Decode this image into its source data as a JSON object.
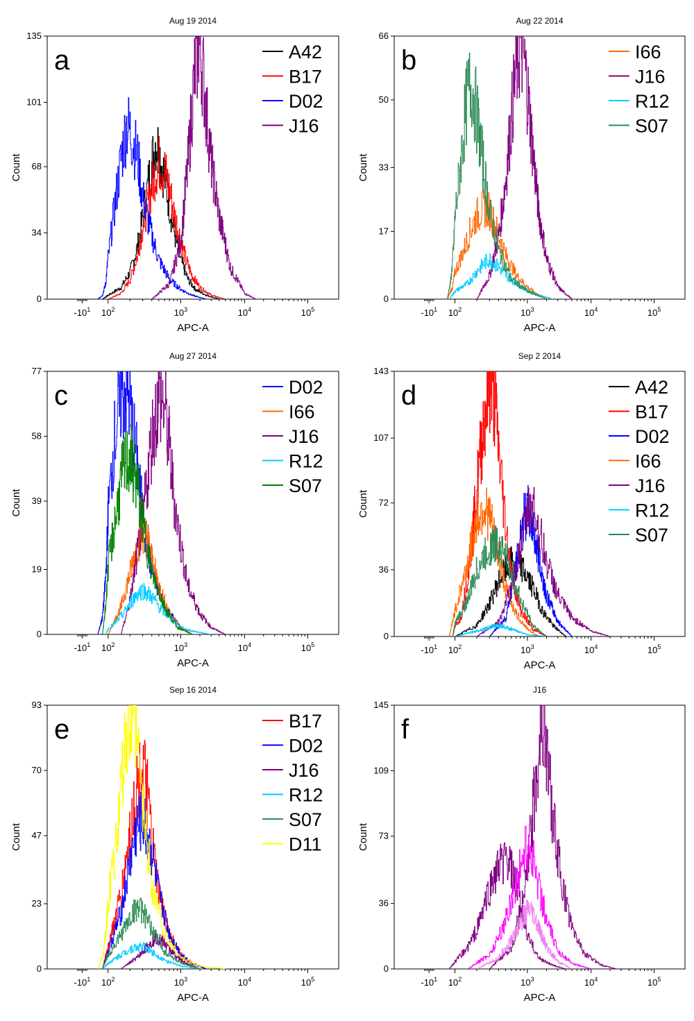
{
  "chart_data": [
    {
      "type": "area",
      "panel": "a",
      "title": "Aug 19 2014",
      "xlabel": "APC-A",
      "ylabel": "Count",
      "x_scale": "log",
      "x_tick_labels": [
        "-10^1",
        "10^2",
        "10^3",
        "10^4",
        "10^5"
      ],
      "y_ticks": [
        0,
        34,
        68,
        101,
        135
      ],
      "ylim": [
        0,
        135
      ],
      "grid": false,
      "legend_position": "top-right",
      "series": [
        {
          "name": "A42",
          "color": "#000000",
          "x": [
            60,
            100,
            150,
            200,
            250,
            300,
            350,
            400,
            450,
            500,
            600,
            700,
            800,
            1000,
            1300,
            1700,
            2500,
            4000
          ],
          "values": [
            0,
            2,
            6,
            14,
            26,
            42,
            58,
            70,
            82,
            76,
            62,
            48,
            35,
            20,
            10,
            5,
            2,
            0
          ]
        },
        {
          "name": "B17",
          "color": "#ff0000",
          "x": [
            100,
            150,
            200,
            250,
            300,
            400,
            450,
            500,
            600,
            700,
            800,
            1000,
            1200,
            1500,
            2000,
            3000,
            5000
          ],
          "values": [
            0,
            3,
            10,
            22,
            38,
            58,
            66,
            70,
            66,
            56,
            44,
            30,
            20,
            12,
            6,
            2,
            0
          ]
        },
        {
          "name": "D02",
          "color": "#0000ff",
          "x": [
            40,
            60,
            80,
            100,
            120,
            150,
            180,
            200,
            250,
            300,
            400,
            500,
            700,
            1000,
            1500,
            2500
          ],
          "values": [
            0,
            2,
            8,
            22,
            45,
            72,
            90,
            86,
            74,
            52,
            32,
            20,
            10,
            5,
            2,
            0
          ]
        },
        {
          "name": "J16",
          "color": "#800080",
          "x": [
            400,
            700,
            1000,
            1300,
            1600,
            1900,
            2200,
            2500,
            3000,
            4000,
            6000,
            10000,
            15000
          ],
          "values": [
            0,
            8,
            30,
            70,
            112,
            132,
            118,
            96,
            70,
            42,
            16,
            3,
            0
          ]
        }
      ]
    },
    {
      "type": "area",
      "panel": "b",
      "title": "Aug 22 2014",
      "xlabel": "APC-A",
      "ylabel": "Count",
      "x_scale": "log",
      "x_tick_labels": [
        "-10^1",
        "10^2",
        "10^3",
        "10^4",
        "10^5"
      ],
      "y_ticks": [
        0,
        17,
        33,
        50,
        66
      ],
      "ylim": [
        0,
        66
      ],
      "grid": false,
      "legend_position": "top-right",
      "series": [
        {
          "name": "I66",
          "color": "#ff6600",
          "x": [
            50,
            80,
            100,
            130,
            160,
            200,
            250,
            300,
            400,
            500,
            700,
            1000,
            1500,
            2500
          ],
          "values": [
            0,
            3,
            7,
            12,
            17,
            21,
            23,
            22,
            16,
            11,
            6,
            3,
            1,
            0
          ]
        },
        {
          "name": "J16",
          "color": "#800080",
          "x": [
            200,
            300,
            400,
            500,
            600,
            700,
            800,
            900,
            1000,
            1200,
            1500,
            2000,
            3000,
            5000
          ],
          "values": [
            0,
            6,
            16,
            30,
            46,
            58,
            64,
            60,
            52,
            38,
            22,
            10,
            3,
            0
          ]
        },
        {
          "name": "R12",
          "color": "#00ccff",
          "x": [
            60,
            100,
            150,
            200,
            250,
            300,
            400,
            500,
            700,
            1000,
            1500,
            2500
          ],
          "values": [
            0,
            2,
            4,
            7,
            9,
            10,
            8,
            6,
            4,
            2,
            1,
            0
          ]
        },
        {
          "name": "S07",
          "color": "#2e8b57",
          "x": [
            50,
            70,
            90,
            110,
            130,
            150,
            170,
            200,
            250,
            300,
            400,
            600,
            1000,
            2000
          ],
          "values": [
            0,
            5,
            14,
            28,
            42,
            52,
            54,
            46,
            32,
            22,
            12,
            5,
            2,
            0
          ]
        }
      ]
    },
    {
      "type": "area",
      "panel": "c",
      "title": "Aug 27 2014",
      "xlabel": "APC-A",
      "ylabel": "Count",
      "x_scale": "log",
      "x_tick_labels": [
        "-10^1",
        "10^2",
        "10^3",
        "10^4",
        "10^5"
      ],
      "y_ticks": [
        0,
        19,
        39,
        58,
        77
      ],
      "ylim": [
        0,
        77
      ],
      "grid": false,
      "legend_position": "top-right",
      "series": [
        {
          "name": "D02",
          "color": "#0000ff",
          "x": [
            40,
            60,
            80,
            100,
            120,
            150,
            180,
            200,
            250,
            300,
            400,
            600,
            1000,
            1500
          ],
          "values": [
            0,
            5,
            16,
            36,
            56,
            70,
            72,
            66,
            50,
            34,
            18,
            8,
            2,
            0
          ]
        },
        {
          "name": "I66",
          "color": "#ff6600",
          "x": [
            100,
            150,
            200,
            250,
            300,
            350,
            400,
            500,
            700,
            1000,
            1500
          ],
          "values": [
            0,
            8,
            18,
            26,
            30,
            28,
            22,
            14,
            6,
            2,
            0
          ]
        },
        {
          "name": "J16",
          "color": "#800080",
          "x": [
            150,
            200,
            300,
            400,
            500,
            600,
            700,
            800,
            1000,
            1300,
            2000,
            3000,
            5000
          ],
          "values": [
            0,
            10,
            34,
            58,
            70,
            66,
            54,
            40,
            26,
            14,
            6,
            2,
            0
          ]
        },
        {
          "name": "R12",
          "color": "#00ccff",
          "x": [
            80,
            120,
            160,
            200,
            250,
            300,
            400,
            500,
            700,
            1000,
            1500,
            3000
          ],
          "values": [
            0,
            3,
            6,
            9,
            12,
            13,
            11,
            8,
            5,
            2,
            1,
            0
          ]
        },
        {
          "name": "S07",
          "color": "#008000",
          "x": [
            60,
            80,
            100,
            130,
            160,
            200,
            250,
            300,
            400,
            600,
            900,
            1500
          ],
          "values": [
            0,
            8,
            20,
            36,
            48,
            52,
            44,
            32,
            18,
            8,
            2,
            0
          ]
        }
      ]
    },
    {
      "type": "area",
      "panel": "d",
      "title": "Sep 2 2014",
      "xlabel": "APC-A",
      "ylabel": "Count",
      "x_scale": "log",
      "x_tick_labels": [
        "-10^1",
        "10^2",
        "10^3",
        "10^4",
        "10^5"
      ],
      "y_ticks": [
        0,
        36,
        72,
        107,
        143
      ],
      "ylim": [
        0,
        143
      ],
      "grid": false,
      "legend_position": "top-right",
      "series": [
        {
          "name": "A42",
          "color": "#000000",
          "x": [
            100,
            200,
            300,
            400,
            500,
            600,
            800,
            1000,
            1300,
            1700,
            2500,
            4000
          ],
          "values": [
            0,
            6,
            18,
            30,
            36,
            40,
            38,
            32,
            24,
            14,
            6,
            0
          ]
        },
        {
          "name": "B17",
          "color": "#ff0000",
          "x": [
            80,
            120,
            160,
            200,
            250,
            300,
            350,
            400,
            500,
            600,
            800,
            1200,
            2000
          ],
          "values": [
            0,
            10,
            40,
            80,
            118,
            136,
            128,
            100,
            60,
            34,
            14,
            4,
            0
          ]
        },
        {
          "name": "D02",
          "color": "#0000ff",
          "x": [
            300,
            500,
            700,
            800,
            900,
            1000,
            1200,
            1500,
            2000,
            3000,
            5000
          ],
          "values": [
            0,
            10,
            38,
            54,
            64,
            68,
            60,
            42,
            22,
            8,
            0
          ]
        },
        {
          "name": "I66",
          "color": "#ff6600",
          "x": [
            60,
            100,
            150,
            200,
            250,
            300,
            400,
            500,
            700,
            1000,
            1500
          ],
          "values": [
            0,
            14,
            40,
            64,
            70,
            64,
            44,
            26,
            12,
            4,
            0
          ]
        },
        {
          "name": "J16",
          "color": "#800080",
          "x": [
            200,
            400,
            600,
            800,
            1000,
            1200,
            1500,
            2000,
            3000,
            5000,
            10000,
            20000
          ],
          "values": [
            0,
            8,
            26,
            48,
            66,
            72,
            58,
            40,
            22,
            10,
            3,
            0
          ]
        },
        {
          "name": "R12",
          "color": "#00ccff",
          "x": [
            100,
            200,
            300,
            400,
            500,
            700,
            1000,
            2000
          ],
          "values": [
            0,
            3,
            5,
            6,
            5,
            3,
            1,
            0
          ]
        },
        {
          "name": "S07",
          "color": "#2e8b57",
          "x": [
            80,
            150,
            200,
            300,
            400,
            500,
            600,
            800,
            1200,
            2000
          ],
          "values": [
            0,
            20,
            36,
            48,
            50,
            44,
            34,
            20,
            6,
            0
          ]
        }
      ]
    },
    {
      "type": "area",
      "panel": "e",
      "title": "Sep 16 2014",
      "xlabel": "APC-A",
      "ylabel": "Count",
      "x_scale": "log",
      "x_tick_labels": [
        "-10^1",
        "10^2",
        "10^3",
        "10^4",
        "10^5"
      ],
      "y_ticks": [
        0,
        23,
        47,
        70,
        93
      ],
      "ylim": [
        0,
        93
      ],
      "grid": false,
      "legend_position": "top-right",
      "series": [
        {
          "name": "B17",
          "color": "#ff0000",
          "x": [
            60,
            100,
            150,
            200,
            250,
            300,
            350,
            400,
            500,
            700,
            1000,
            1500,
            2500
          ],
          "values": [
            0,
            8,
            26,
            48,
            64,
            70,
            60,
            44,
            26,
            12,
            5,
            2,
            0
          ]
        },
        {
          "name": "D02",
          "color": "#0000ff",
          "x": [
            60,
            100,
            150,
            200,
            250,
            300,
            400,
            500,
            700,
            1000,
            1500,
            2500
          ],
          "values": [
            0,
            6,
            20,
            38,
            50,
            52,
            40,
            26,
            12,
            5,
            2,
            0
          ]
        },
        {
          "name": "J16",
          "color": "#800080",
          "x": [
            150,
            250,
            350,
            450,
            550,
            700,
            900,
            1200,
            2000
          ],
          "values": [
            0,
            4,
            8,
            11,
            10,
            7,
            4,
            2,
            0
          ]
        },
        {
          "name": "R12",
          "color": "#00ccff",
          "x": [
            60,
            100,
            150,
            200,
            300,
            400,
            600,
            1000,
            2000
          ],
          "values": [
            0,
            2,
            5,
            7,
            8,
            6,
            3,
            1,
            0
          ]
        },
        {
          "name": "S07",
          "color": "#2e8b57",
          "x": [
            60,
            100,
            150,
            200,
            250,
            300,
            400,
            600,
            1000,
            2000
          ],
          "values": [
            0,
            5,
            12,
            18,
            22,
            20,
            14,
            6,
            2,
            0
          ]
        },
        {
          "name": "D11",
          "color": "#ffff00",
          "x": [
            40,
            60,
            80,
            100,
            130,
            160,
            190,
            220,
            250,
            300,
            400,
            600,
            1000,
            2000,
            5000
          ],
          "values": [
            0,
            4,
            12,
            24,
            46,
            70,
            86,
            88,
            78,
            58,
            30,
            12,
            4,
            1,
            0
          ]
        }
      ]
    },
    {
      "type": "area",
      "panel": "f",
      "title": "J16",
      "xlabel": "APC-A",
      "ylabel": "Count",
      "x_scale": "log",
      "x_tick_labels": [
        "-10^1",
        "10^2",
        "10^3",
        "10^4",
        "10^5"
      ],
      "y_ticks": [
        0,
        36,
        73,
        109,
        145
      ],
      "ylim": [
        0,
        145
      ],
      "grid": false,
      "series": [
        {
          "color": "#800080",
          "x": [
            60,
            100,
            150,
            200,
            250,
            300,
            400,
            500,
            600,
            800,
            1000,
            1500,
            2500,
            4000
          ],
          "values": [
            0,
            4,
            12,
            22,
            34,
            44,
            56,
            60,
            54,
            34,
            18,
            6,
            2,
            0
          ]
        },
        {
          "color": "#800080",
          "x": [
            300,
            600,
            900,
            1200,
            1500,
            1700,
            1900,
            2200,
            2600,
            3500,
            5000,
            8000,
            15000,
            25000
          ],
          "values": [
            0,
            12,
            40,
            84,
            124,
            140,
            130,
            104,
            78,
            46,
            22,
            8,
            2,
            0
          ]
        },
        {
          "color": "#ff00ff",
          "x": [
            150,
            300,
            450,
            600,
            750,
            900,
            1000,
            1200,
            1500,
            2000,
            3000,
            5000,
            10000
          ],
          "values": [
            0,
            8,
            22,
            38,
            52,
            64,
            68,
            62,
            46,
            26,
            10,
            3,
            0
          ]
        },
        {
          "color": "#ee82ee",
          "x": [
            200,
            400,
            600,
            800,
            1000,
            1200,
            1500,
            2000,
            3000,
            5000
          ],
          "values": [
            0,
            6,
            16,
            26,
            32,
            30,
            22,
            12,
            4,
            0
          ]
        }
      ]
    }
  ]
}
